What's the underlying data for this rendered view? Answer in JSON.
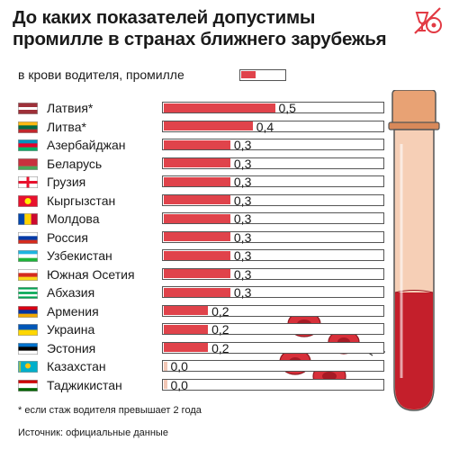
{
  "title": "До каких показателей допустимы промилле в странах ближнего зарубежья",
  "legend_label": "в крови водителя, промилле",
  "footnote": "* если стаж водителя превышает 2 года",
  "source": "Источник: официальные данные",
  "colors": {
    "bar": "#e0434b",
    "bar_track_border": "#555555",
    "tube_blood": "#c41f2b",
    "tube_plasma": "#f6cfb6",
    "cork": "#e8a274",
    "logo": "#e23a44"
  },
  "icons": {
    "logo": "car-wine-glass-logo-icon",
    "tube": "test-tube-icon",
    "cells": "red-blood-cells-icon",
    "arrow": "arrow-left-icon"
  },
  "chart_data": {
    "type": "bar",
    "orientation": "horizontal",
    "categories": [
      "Латвия*",
      "Литва*",
      "Азербайджан",
      "Беларусь",
      "Грузия",
      "Кыргызстан",
      "Молдова",
      "Россия",
      "Узбекистан",
      "Южная Осетия",
      "Абхазия",
      "Армения",
      "Украина",
      "Эстония",
      "Казахстан",
      "Таджикистан"
    ],
    "values": [
      0.5,
      0.4,
      0.3,
      0.3,
      0.3,
      0.3,
      0.3,
      0.3,
      0.3,
      0.3,
      0.3,
      0.2,
      0.2,
      0.2,
      0.0,
      0.0
    ],
    "value_labels": [
      "0,5",
      "0,4",
      "0,3",
      "0,3",
      "0,3",
      "0,3",
      "0,3",
      "0,3",
      "0,3",
      "0,3",
      "0,3",
      "0,2",
      "0,2",
      "0,2",
      "0,0",
      "0,0"
    ],
    "flags": [
      "flag-latvia-icon",
      "flag-lithuania-icon",
      "flag-azerbaijan-icon",
      "flag-belarus-icon",
      "flag-georgia-icon",
      "flag-kyrgyzstan-icon",
      "flag-moldova-icon",
      "flag-russia-icon",
      "flag-uzbekistan-icon",
      "flag-south-ossetia-icon",
      "flag-abkhazia-icon",
      "flag-armenia-icon",
      "flag-ukraine-icon",
      "flag-estonia-icon",
      "flag-kazakhstan-icon",
      "flag-tajikistan-icon"
    ],
    "xlim": [
      0,
      0.5
    ],
    "grid": false,
    "legend_position": "top-left"
  }
}
